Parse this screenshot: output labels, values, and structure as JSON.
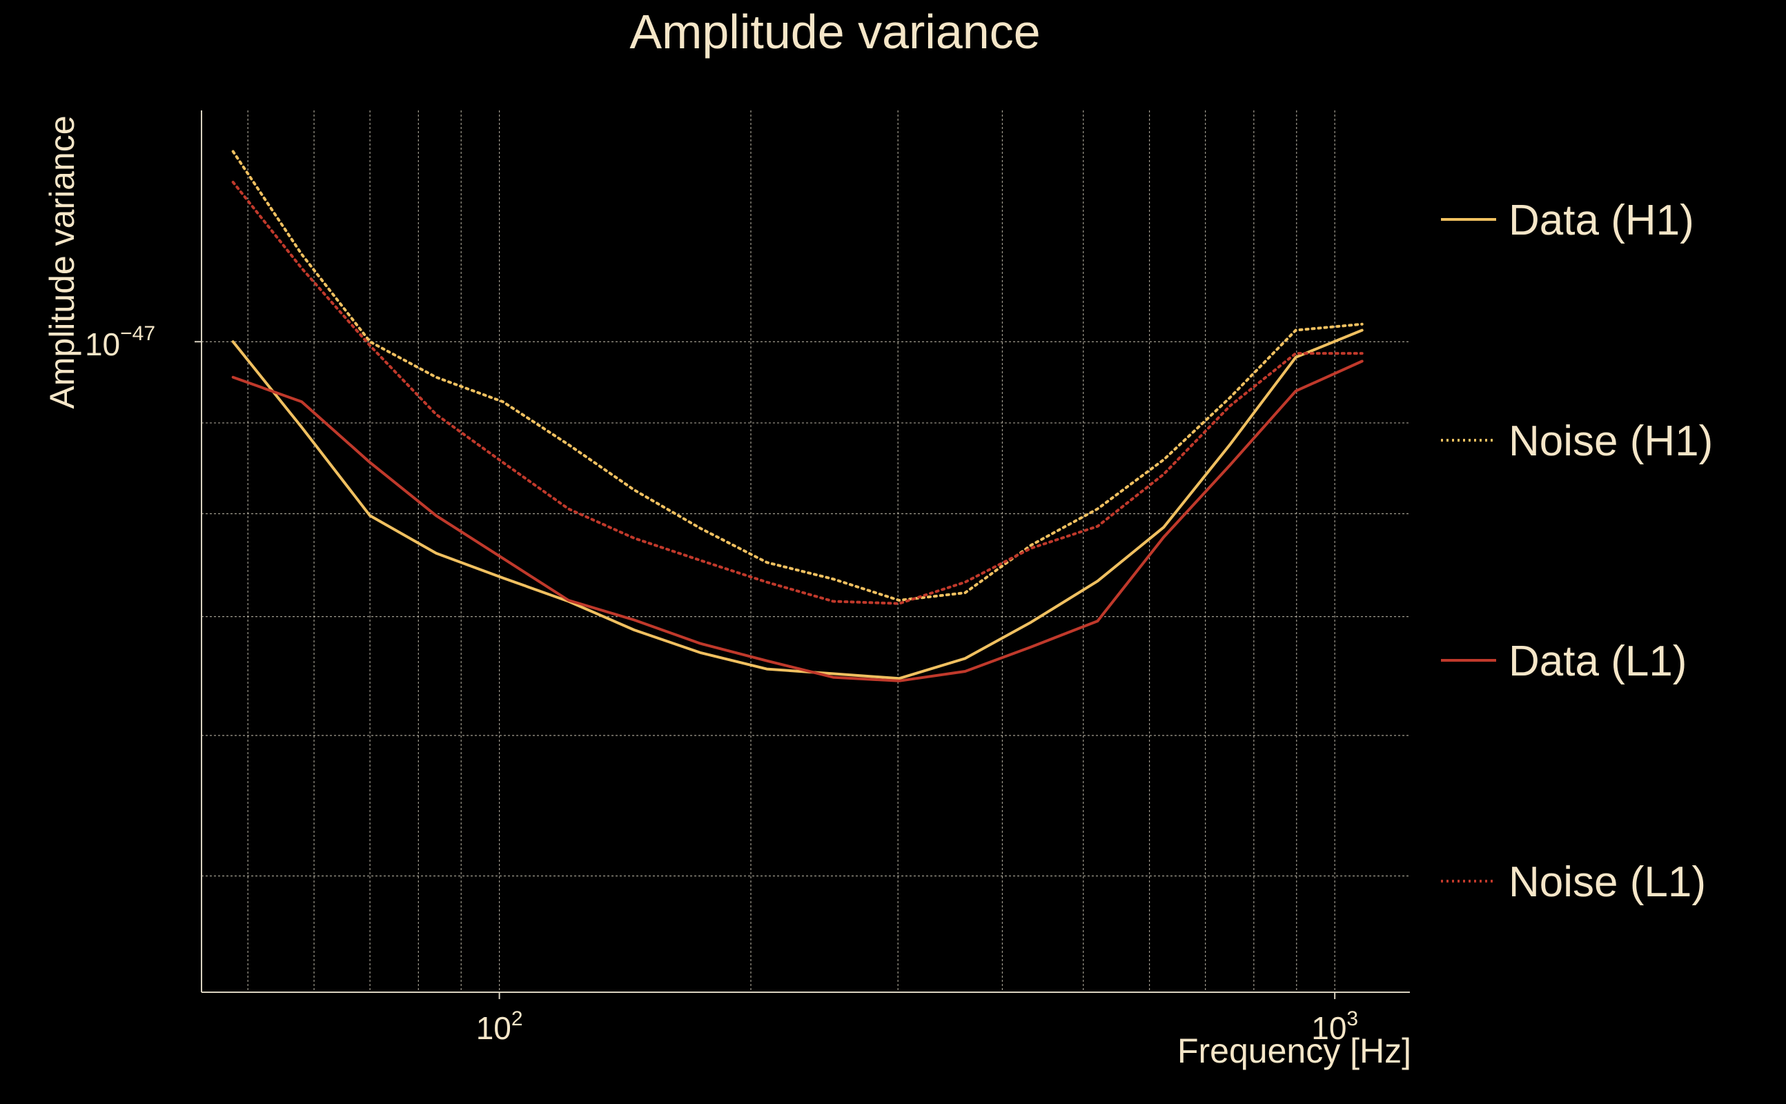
{
  "chart_data": {
    "type": "line",
    "title": "Amplitude variance",
    "xlabel": "Frequency [Hz]",
    "ylabel": "Amplitude variance",
    "x_scale": "log",
    "y_scale": "log",
    "xlim": [
      44,
      1230
    ],
    "ylim": [
      4.3e-48,
      1.35e-47
    ],
    "x_ticks": [
      {
        "value": 100,
        "base": "10",
        "exp": "2"
      },
      {
        "value": 1000,
        "base": "10",
        "exp": "3"
      }
    ],
    "y_ticks": [
      {
        "value": 1e-47,
        "base": "10",
        "exp": "−47"
      }
    ],
    "grid": true,
    "legend_position": "right",
    "background": "#000000",
    "text_color": "#f5e6c8",
    "series": [
      {
        "name": "Data (H1)",
        "color": "#f0c060",
        "style": "solid",
        "x": [
          48,
          58,
          70,
          84,
          101,
          121,
          145,
          174,
          209,
          251,
          301,
          361,
          433,
          520,
          624,
          749,
          898,
          1078
        ],
        "y": [
          1e-47,
          8.95e-48,
          7.98e-48,
          7.6e-48,
          7.36e-48,
          7.14e-48,
          6.88e-48,
          6.68e-48,
          6.54e-48,
          6.5e-48,
          6.46e-48,
          6.63e-48,
          6.95e-48,
          7.33e-48,
          7.86e-48,
          8.75e-48,
          9.8e-48,
          1.015e-47
        ]
      },
      {
        "name": "Noise (H1)",
        "color": "#f0c060",
        "style": "dotted",
        "x": [
          48,
          58,
          70,
          84,
          101,
          121,
          145,
          174,
          209,
          251,
          301,
          361,
          433,
          520,
          624,
          749,
          898,
          1078
        ],
        "y": [
          1.28e-47,
          1.12e-47,
          1e-47,
          9.55e-48,
          9.25e-48,
          8.75e-48,
          8.25e-48,
          7.85e-48,
          7.51e-48,
          7.35e-48,
          7.15e-48,
          7.22e-48,
          7.68e-48,
          8.05e-48,
          8.58e-48,
          9.3e-48,
          1.015e-47,
          1.023e-47
        ]
      },
      {
        "name": "Data (L1)",
        "color": "#c0392b",
        "style": "solid",
        "x": [
          48,
          58,
          70,
          84,
          101,
          121,
          145,
          174,
          209,
          251,
          301,
          361,
          433,
          520,
          624,
          749,
          898,
          1078
        ],
        "y": [
          9.55e-48,
          9.25e-48,
          8.55e-48,
          7.98e-48,
          7.55e-48,
          7.15e-48,
          6.97e-48,
          6.76e-48,
          6.61e-48,
          6.47e-48,
          6.44e-48,
          6.52e-48,
          6.73e-48,
          6.96e-48,
          7.76e-48,
          8.52e-48,
          9.38e-48,
          9.75e-48
        ]
      },
      {
        "name": "Noise (L1)",
        "color": "#c0392b",
        "style": "dotted",
        "x": [
          48,
          58,
          70,
          84,
          101,
          121,
          145,
          174,
          209,
          251,
          301,
          361,
          433,
          520,
          624,
          749,
          898,
          1078
        ],
        "y": [
          1.23e-47,
          1.1e-47,
          9.95e-48,
          9.1e-48,
          8.55e-48,
          8.05e-48,
          7.75e-48,
          7.53e-48,
          7.32e-48,
          7.14e-48,
          7.12e-48,
          7.32e-48,
          7.65e-48,
          7.87e-48,
          8.42e-48,
          9.2e-48,
          9.85e-48,
          9.85e-48
        ]
      }
    ]
  }
}
